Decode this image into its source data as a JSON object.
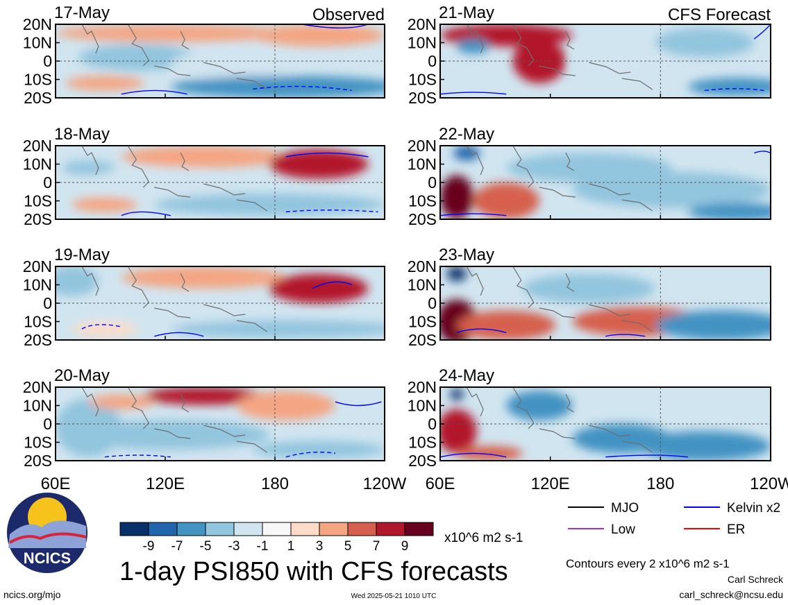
{
  "chart_data": {
    "type": "heatmap",
    "title": "1-day PSI850 with CFS forecasts",
    "variable": "PSI850",
    "units": "x10^6 m2 s-1",
    "contour_note": "Contours every 2 x10^6 m2 s-1",
    "panel_group_labels": [
      "Observed",
      "CFS Forecast"
    ],
    "x_ticks": [
      "60E",
      "120E",
      "180",
      "120W"
    ],
    "y_ticks": [
      "20N",
      "10N",
      "0",
      "10S",
      "20S"
    ],
    "xlim": [
      60,
      240
    ],
    "ylim": [
      -20,
      20
    ],
    "colorbar": {
      "labels": [
        "-9",
        "-7",
        "-5",
        "-3",
        "-1",
        "1",
        "3",
        "5",
        "7",
        "9"
      ],
      "colors": [
        "#08306b",
        "#2166ac",
        "#4393c3",
        "#92c5de",
        "#d1e5f0",
        "#f7f7f7",
        "#fddbc7",
        "#f4a582",
        "#d6604d",
        "#b2182b",
        "#67001f"
      ]
    },
    "legend": [
      {
        "label": "MJO",
        "color": "#000000"
      },
      {
        "label": "Kelvin x2",
        "color": "#0000ff"
      },
      {
        "label": "Low",
        "color": "#9933cc"
      },
      {
        "label": "ER",
        "color": "#ff0000"
      }
    ],
    "panels": [
      {
        "date": "17-May",
        "kind": "observed"
      },
      {
        "date": "18-May",
        "kind": "observed"
      },
      {
        "date": "19-May",
        "kind": "observed"
      },
      {
        "date": "20-May",
        "kind": "observed"
      },
      {
        "date": "21-May",
        "kind": "forecast"
      },
      {
        "date": "22-May",
        "kind": "forecast"
      },
      {
        "date": "23-May",
        "kind": "forecast"
      },
      {
        "date": "24-May",
        "kind": "forecast"
      }
    ]
  },
  "footer": {
    "logo_text": "NCICS",
    "url": "ncics.org/mjo",
    "timestamp": "Wed 2025-05-21 1010 UTC",
    "author": "Carl Schreck",
    "email": "carl_schreck@ncsu.edu"
  }
}
